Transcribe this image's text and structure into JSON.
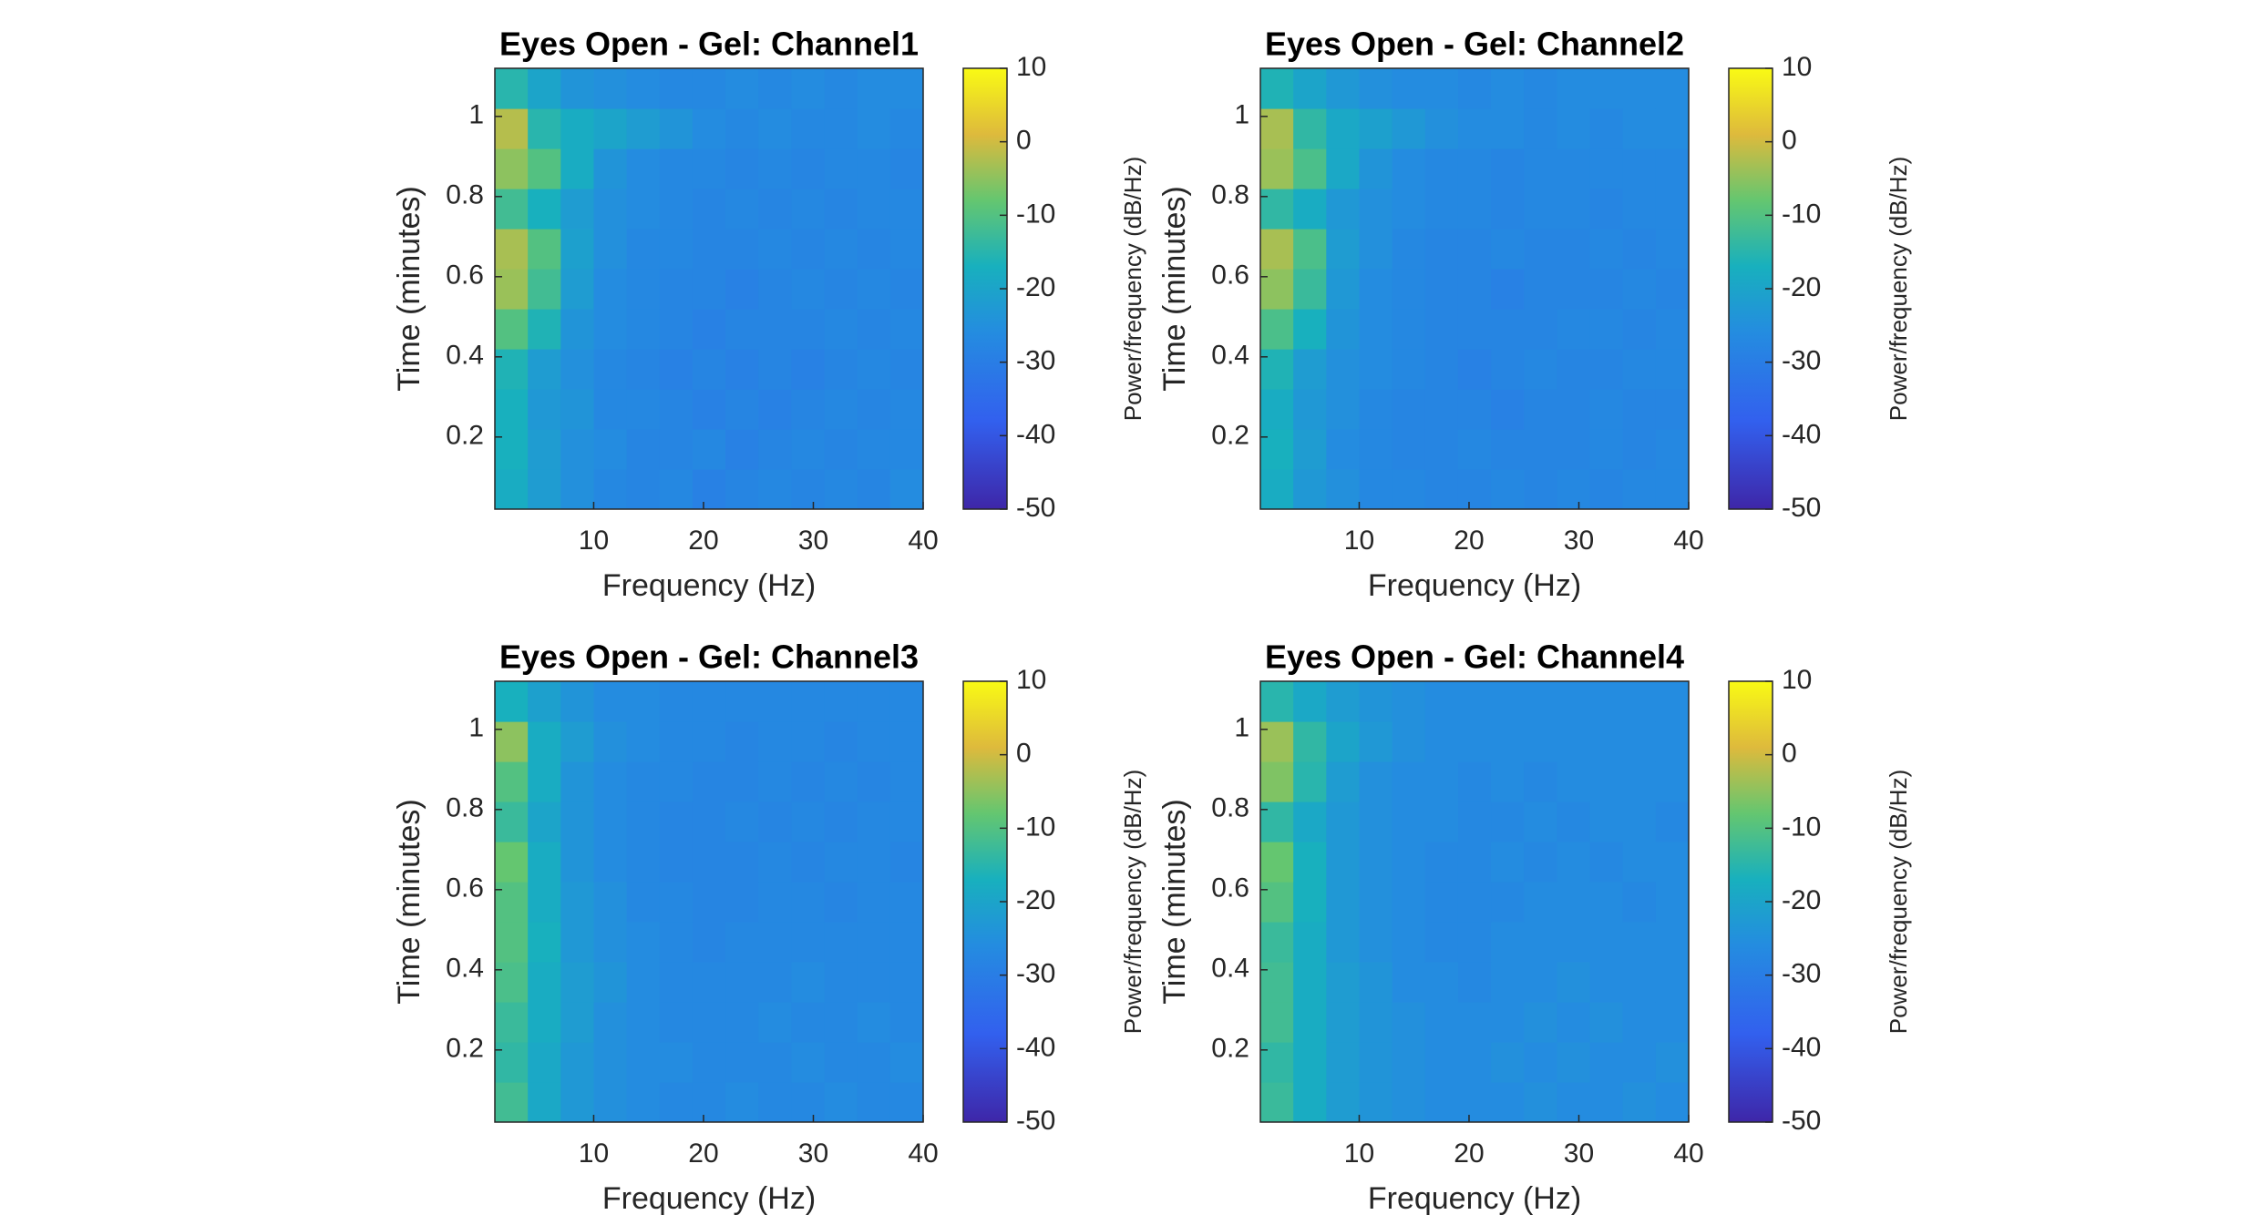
{
  "chart_data": [
    {
      "type": "heatmap",
      "title": "Eyes Open - Gel: Channel1",
      "xlabel": "Frequency (Hz)",
      "ylabel": "Time (minutes)",
      "colormap": "parula",
      "x": [
        2.5,
        5.5,
        8.5,
        11.5,
        14.5,
        17.5,
        20.5,
        23.5,
        26.5,
        29.5,
        32.5,
        35.5,
        38.5
      ],
      "y": [
        0.07,
        0.17,
        0.27,
        0.37,
        0.47,
        0.57,
        0.67,
        0.77,
        0.87,
        0.97,
        1.07
      ],
      "values": [
        [
          -18,
          -22,
          -25,
          -27,
          -28,
          -27,
          -29,
          -28,
          -27,
          -28,
          -27,
          -28,
          -26
        ],
        [
          -17,
          -22,
          -25,
          -26,
          -28,
          -28,
          -27,
          -29,
          -28,
          -27,
          -28,
          -27,
          -27
        ],
        [
          -17,
          -23,
          -24,
          -27,
          -27,
          -28,
          -29,
          -28,
          -29,
          -28,
          -27,
          -28,
          -27
        ],
        [
          -16,
          -22,
          -25,
          -27,
          -28,
          -29,
          -28,
          -29,
          -28,
          -29,
          -28,
          -27,
          -28
        ],
        [
          -10,
          -16,
          -24,
          -26,
          -27,
          -28,
          -29,
          -28,
          -28,
          -28,
          -27,
          -28,
          -27
        ],
        [
          -4,
          -12,
          -22,
          -26,
          -27,
          -28,
          -28,
          -29,
          -28,
          -27,
          -28,
          -27,
          -28
        ],
        [
          -3,
          -10,
          -21,
          -25,
          -27,
          -27,
          -28,
          -28,
          -27,
          -28,
          -27,
          -28,
          -27
        ],
        [
          -12,
          -17,
          -22,
          -25,
          -26,
          -27,
          -28,
          -27,
          -28,
          -27,
          -28,
          -27,
          -27
        ],
        [
          -5,
          -10,
          -18,
          -24,
          -26,
          -27,
          -27,
          -28,
          -27,
          -28,
          -27,
          -27,
          -28
        ],
        [
          -2,
          -15,
          -18,
          -20,
          -22,
          -24,
          -26,
          -27,
          -26,
          -27,
          -27,
          -26,
          -27
        ],
        [
          -15,
          -20,
          -24,
          -25,
          -26,
          -27,
          -27,
          -26,
          -27,
          -26,
          -27,
          -26,
          -26
        ]
      ],
      "xlim": [
        1,
        40
      ],
      "ylim": [
        0.02,
        1.12
      ],
      "xticks": [
        10,
        20,
        30,
        40
      ],
      "yticks": [
        0.2,
        0.4,
        0.6,
        0.8,
        1
      ],
      "colorbar": {
        "label": "Power/frequency (dB/Hz)",
        "lim": [
          -50,
          10
        ],
        "ticks": [
          -50,
          -40,
          -30,
          -20,
          -10,
          0,
          10
        ]
      }
    },
    {
      "type": "heatmap",
      "title": "Eyes Open - Gel: Channel2",
      "xlabel": "Frequency (Hz)",
      "ylabel": "Time (minutes)",
      "colormap": "parula",
      "x": [
        2.5,
        5.5,
        8.5,
        11.5,
        14.5,
        17.5,
        20.5,
        23.5,
        26.5,
        29.5,
        32.5,
        35.5,
        38.5
      ],
      "y": [
        0.07,
        0.17,
        0.27,
        0.37,
        0.47,
        0.57,
        0.67,
        0.77,
        0.87,
        0.97,
        1.07
      ],
      "values": [
        [
          -18,
          -23,
          -25,
          -27,
          -27,
          -28,
          -28,
          -27,
          -28,
          -27,
          -28,
          -27,
          -27
        ],
        [
          -17,
          -22,
          -26,
          -27,
          -28,
          -28,
          -27,
          -28,
          -28,
          -28,
          -27,
          -28,
          -27
        ],
        [
          -18,
          -23,
          -25,
          -27,
          -28,
          -28,
          -28,
          -29,
          -28,
          -28,
          -27,
          -28,
          -28
        ],
        [
          -16,
          -22,
          -25,
          -26,
          -27,
          -28,
          -29,
          -28,
          -27,
          -28,
          -28,
          -27,
          -27
        ],
        [
          -11,
          -17,
          -24,
          -26,
          -27,
          -28,
          -28,
          -28,
          -28,
          -27,
          -27,
          -28,
          -27
        ],
        [
          -5,
          -13,
          -23,
          -26,
          -27,
          -28,
          -28,
          -29,
          -28,
          -28,
          -28,
          -27,
          -28
        ],
        [
          -3,
          -11,
          -22,
          -25,
          -27,
          -28,
          -28,
          -27,
          -28,
          -28,
          -27,
          -28,
          -27
        ],
        [
          -14,
          -18,
          -23,
          -25,
          -26,
          -27,
          -27,
          -28,
          -27,
          -27,
          -28,
          -27,
          -27
        ],
        [
          -4,
          -11,
          -19,
          -24,
          -26,
          -27,
          -27,
          -28,
          -27,
          -27,
          -27,
          -27,
          -27
        ],
        [
          -3,
          -14,
          -19,
          -21,
          -23,
          -25,
          -26,
          -26,
          -27,
          -26,
          -27,
          -26,
          -26
        ],
        [
          -16,
          -20,
          -23,
          -25,
          -26,
          -26,
          -27,
          -26,
          -27,
          -26,
          -26,
          -26,
          -26
        ]
      ],
      "xlim": [
        1,
        40
      ],
      "ylim": [
        0.02,
        1.12
      ],
      "xticks": [
        10,
        20,
        30,
        40
      ],
      "yticks": [
        0.2,
        0.4,
        0.6,
        0.8,
        1
      ],
      "colorbar": {
        "label": "Power/frequency (dB/Hz)",
        "lim": [
          -50,
          10
        ],
        "ticks": [
          -50,
          -40,
          -30,
          -20,
          -10,
          0,
          10
        ]
      }
    },
    {
      "type": "heatmap",
      "title": "Eyes Open - Gel: Channel3",
      "xlabel": "Frequency (Hz)",
      "ylabel": "Time (minutes)",
      "colormap": "parula",
      "x": [
        2.5,
        5.5,
        8.5,
        11.5,
        14.5,
        17.5,
        20.5,
        23.5,
        26.5,
        29.5,
        32.5,
        35.5,
        38.5
      ],
      "y": [
        0.07,
        0.17,
        0.27,
        0.37,
        0.47,
        0.57,
        0.67,
        0.77,
        0.87,
        0.97,
        1.07
      ],
      "values": [
        [
          -12,
          -19,
          -23,
          -25,
          -26,
          -27,
          -27,
          -26,
          -27,
          -27,
          -26,
          -27,
          -27
        ],
        [
          -14,
          -19,
          -23,
          -25,
          -26,
          -26,
          -27,
          -27,
          -27,
          -26,
          -27,
          -27,
          -26
        ],
        [
          -13,
          -18,
          -22,
          -25,
          -26,
          -27,
          -27,
          -27,
          -26,
          -27,
          -27,
          -26,
          -27
        ],
        [
          -11,
          -18,
          -22,
          -24,
          -26,
          -27,
          -27,
          -27,
          -27,
          -26,
          -27,
          -27,
          -27
        ],
        [
          -10,
          -17,
          -23,
          -25,
          -26,
          -27,
          -28,
          -27,
          -27,
          -27,
          -27,
          -27,
          -27
        ],
        [
          -10,
          -18,
          -23,
          -25,
          -27,
          -27,
          -28,
          -28,
          -27,
          -27,
          -28,
          -27,
          -27
        ],
        [
          -8,
          -18,
          -24,
          -26,
          -27,
          -28,
          -28,
          -28,
          -27,
          -28,
          -27,
          -27,
          -28
        ],
        [
          -13,
          -20,
          -24,
          -26,
          -27,
          -28,
          -28,
          -27,
          -28,
          -27,
          -28,
          -27,
          -27
        ],
        [
          -10,
          -18,
          -24,
          -26,
          -27,
          -27,
          -28,
          -28,
          -27,
          -28,
          -27,
          -28,
          -27
        ],
        [
          -5,
          -18,
          -22,
          -25,
          -26,
          -27,
          -27,
          -28,
          -27,
          -27,
          -28,
          -27,
          -27
        ],
        [
          -17,
          -21,
          -24,
          -26,
          -26,
          -27,
          -27,
          -27,
          -27,
          -27,
          -27,
          -27,
          -27
        ]
      ],
      "xlim": [
        1,
        40
      ],
      "ylim": [
        0.02,
        1.12
      ],
      "xticks": [
        10,
        20,
        30,
        40
      ],
      "yticks": [
        0.2,
        0.4,
        0.6,
        0.8,
        1
      ],
      "colorbar": {
        "label": "Power/frequency (dB/Hz)",
        "lim": [
          -50,
          10
        ],
        "ticks": [
          -50,
          -40,
          -30,
          -20,
          -10,
          0,
          10
        ]
      }
    },
    {
      "type": "heatmap",
      "title": "Eyes Open - Gel: Channel4",
      "xlabel": "Frequency (Hz)",
      "ylabel": "Time (minutes)",
      "colormap": "parula",
      "x": [
        2.5,
        5.5,
        8.5,
        11.5,
        14.5,
        17.5,
        20.5,
        23.5,
        26.5,
        29.5,
        32.5,
        35.5,
        38.5
      ],
      "y": [
        0.07,
        0.17,
        0.27,
        0.37,
        0.47,
        0.57,
        0.67,
        0.77,
        0.87,
        0.97,
        1.07
      ],
      "values": [
        [
          -13,
          -18,
          -22,
          -24,
          -25,
          -26,
          -26,
          -26,
          -25,
          -26,
          -26,
          -25,
          -26
        ],
        [
          -14,
          -18,
          -22,
          -24,
          -25,
          -26,
          -26,
          -25,
          -26,
          -25,
          -26,
          -26,
          -25
        ],
        [
          -12,
          -18,
          -22,
          -24,
          -25,
          -26,
          -26,
          -26,
          -25,
          -26,
          -25,
          -26,
          -26
        ],
        [
          -12,
          -18,
          -22,
          -24,
          -26,
          -26,
          -27,
          -26,
          -26,
          -25,
          -26,
          -26,
          -26
        ],
        [
          -13,
          -18,
          -23,
          -25,
          -26,
          -27,
          -27,
          -26,
          -26,
          -26,
          -26,
          -26,
          -26
        ],
        [
          -10,
          -17,
          -23,
          -25,
          -26,
          -27,
          -27,
          -27,
          -26,
          -26,
          -26,
          -27,
          -26
        ],
        [
          -8,
          -17,
          -23,
          -25,
          -26,
          -27,
          -27,
          -26,
          -27,
          -26,
          -27,
          -26,
          -26
        ],
        [
          -14,
          -19,
          -23,
          -25,
          -26,
          -26,
          -27,
          -27,
          -26,
          -27,
          -26,
          -26,
          -27
        ],
        [
          -6,
          -15,
          -22,
          -25,
          -26,
          -26,
          -27,
          -26,
          -27,
          -26,
          -26,
          -26,
          -26
        ],
        [
          -4,
          -14,
          -20,
          -23,
          -25,
          -26,
          -26,
          -26,
          -26,
          -26,
          -26,
          -26,
          -26
        ],
        [
          -15,
          -19,
          -22,
          -24,
          -25,
          -26,
          -26,
          -26,
          -26,
          -26,
          -26,
          -26,
          -26
        ]
      ],
      "xlim": [
        1,
        40
      ],
      "ylim": [
        0.02,
        1.12
      ],
      "xticks": [
        10,
        20,
        30,
        40
      ],
      "yticks": [
        0.2,
        0.4,
        0.6,
        0.8,
        1
      ],
      "colorbar": {
        "label": "Power/frequency (dB/Hz)",
        "lim": [
          -50,
          10
        ],
        "ticks": [
          -50,
          -40,
          -30,
          -20,
          -10,
          0,
          10
        ]
      }
    }
  ]
}
